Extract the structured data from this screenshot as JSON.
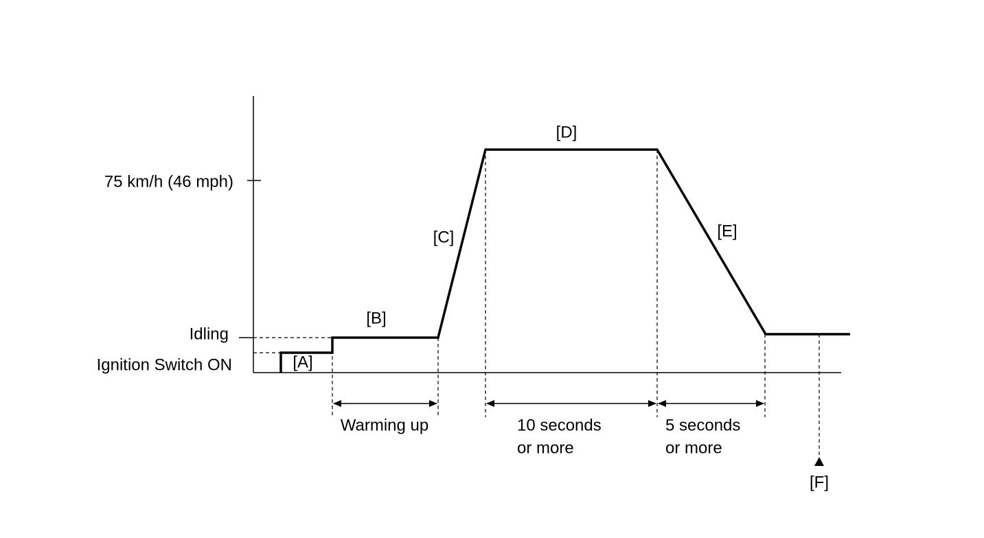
{
  "y_axis": {
    "speed_label": "75 km/h (46 mph)",
    "idling_label": "Idling",
    "ignition_label": "Ignition Switch ON"
  },
  "stages": {
    "a": "[A]",
    "b": "[B]",
    "c": "[C]",
    "d": "[D]",
    "e": "[E]",
    "f": "[F]"
  },
  "durations": {
    "warming": "Warming up",
    "hold": [
      "10 seconds",
      "or more"
    ],
    "decel": [
      "5 seconds",
      "or more"
    ]
  }
}
